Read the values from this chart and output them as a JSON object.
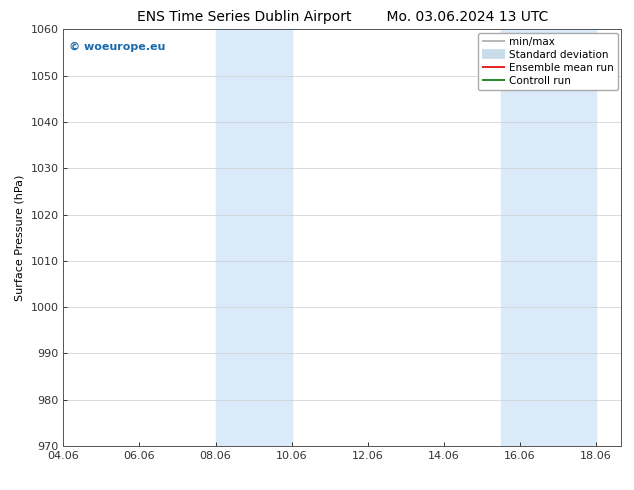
{
  "title": "ENS Time Series Dublin Airport        Mo. 03.06.2024 13 UTC",
  "ylabel": "Surface Pressure (hPa)",
  "xlim_start": 4.0,
  "xlim_end": 18.667,
  "ylim_bottom": 970,
  "ylim_top": 1060,
  "xtick_labels": [
    "04.06",
    "06.06",
    "08.06",
    "10.06",
    "12.06",
    "14.06",
    "16.06",
    "18.06"
  ],
  "xtick_positions": [
    4.0,
    6.0,
    8.0,
    10.0,
    12.0,
    14.0,
    16.0,
    18.0
  ],
  "ytick_positions": [
    970,
    980,
    990,
    1000,
    1010,
    1020,
    1030,
    1040,
    1050,
    1060
  ],
  "shaded_regions": [
    {
      "x_start": 8.0,
      "x_end": 10.0
    },
    {
      "x_start": 15.5,
      "x_end": 18.0
    }
  ],
  "shaded_color": "#daeaf8",
  "watermark_text": "© woeurope.eu",
  "watermark_color": "#1a6aaa",
  "legend_entries": [
    {
      "label": "min/max",
      "color": "#aaaaaa",
      "linestyle": "-",
      "linewidth": 1.2
    },
    {
      "label": "Standard deviation",
      "color": "#c8dcea",
      "linestyle": "-",
      "linewidth": 7
    },
    {
      "label": "Ensemble mean run",
      "color": "#dd0000",
      "linestyle": "-",
      "linewidth": 1.2
    },
    {
      "label": "Controll run",
      "color": "#007700",
      "linestyle": "-",
      "linewidth": 1.2
    }
  ],
  "background_color": "#ffffff",
  "grid_color": "#cccccc",
  "font_size_title": 10,
  "font_size_ticks": 8,
  "font_size_ylabel": 8,
  "font_size_legend": 7.5,
  "font_size_watermark": 8
}
